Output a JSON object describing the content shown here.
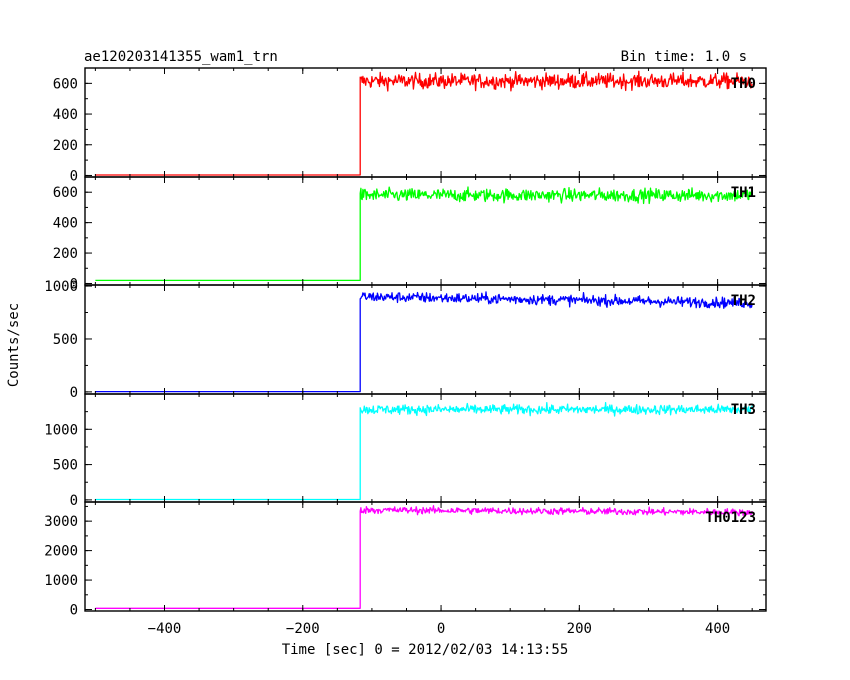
{
  "header": {
    "title": "ae120203141355_wam1_trn",
    "bin_time": "Bin time: 1.0 s"
  },
  "chart_data": {
    "type": "line",
    "title": "ae120203141355_wam1_trn",
    "subtitle": "Bin time: 1.0 s",
    "xlabel": "Time [sec] 0 = 2012/02/03 14:13:55",
    "ylabel": "Counts/sec",
    "xlim": [
      -515,
      470
    ],
    "x_ticks": [
      -400,
      -200,
      0,
      200,
      400
    ],
    "x_data_range": [
      -500,
      450
    ],
    "step_time": -117,
    "grid": false,
    "series": [
      {
        "name": "TH0",
        "color": "#ff0000",
        "ylim": [
          -10,
          700
        ],
        "y_ticks": [
          0,
          200,
          400,
          600
        ],
        "pre_level": 3,
        "post_level": 615,
        "noise": 25,
        "trend": 0
      },
      {
        "name": "TH1",
        "color": "#00ff00",
        "ylim": [
          -10,
          700
        ],
        "y_ticks": [
          0,
          200,
          400,
          600
        ],
        "pre_level": 20,
        "post_level": 580,
        "noise": 22,
        "trend": 0
      },
      {
        "name": "TH2",
        "color": "#0000ff",
        "ylim": [
          -20,
          1010
        ],
        "y_ticks": [
          0,
          500,
          1000
        ],
        "pre_level": 3,
        "post_level": 900,
        "noise": 25,
        "trend": -60
      },
      {
        "name": "TH3",
        "color": "#00ffff",
        "ylim": [
          -30,
          1500
        ],
        "y_ticks": [
          0,
          500,
          1000
        ],
        "pre_level": 5,
        "post_level": 1280,
        "noise": 35,
        "trend": 0
      },
      {
        "name": "TH0123",
        "color": "#ff00ff",
        "ylim": [
          -50,
          3650
        ],
        "y_ticks": [
          0,
          1000,
          2000,
          3000
        ],
        "pre_level": 40,
        "post_level": 3380,
        "noise": 60,
        "trend": -80
      }
    ]
  }
}
